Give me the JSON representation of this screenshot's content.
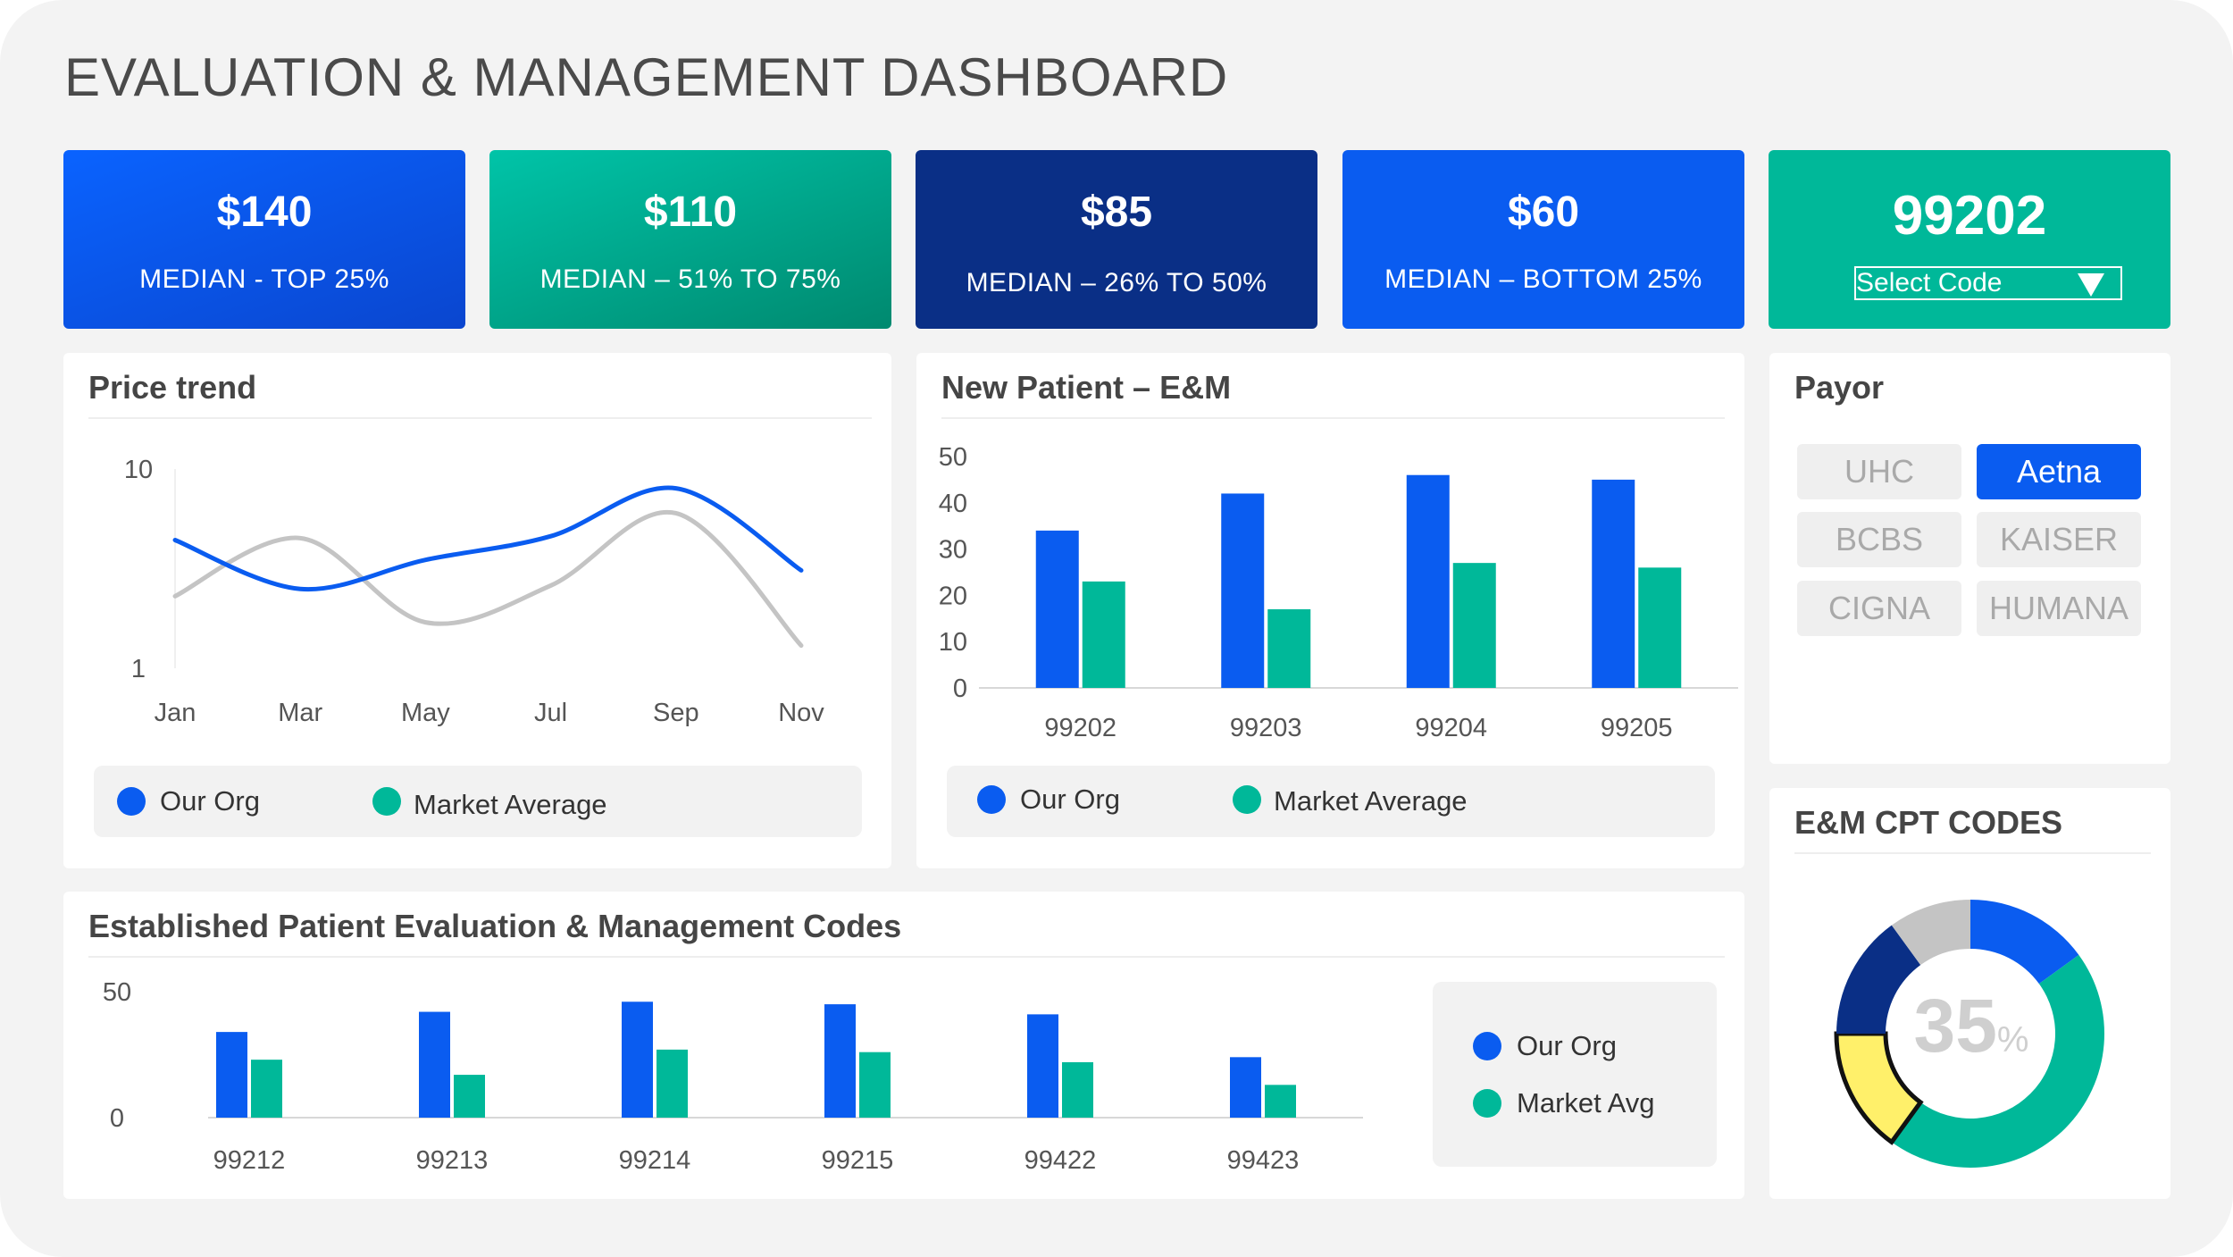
{
  "title": "EVALUATION & MANAGEMENT DASHBOARD",
  "colors": {
    "blue": "#0a5cf0",
    "teal": "#00b899",
    "navy": "#0a2f86",
    "gray": "#c4c4c4",
    "yellow": "#fff06a"
  },
  "kpis": [
    {
      "value": "$140",
      "label": "MEDIAN - TOP 25%"
    },
    {
      "value": "$110",
      "label": "MEDIAN – 51% TO 75%"
    },
    {
      "value": "$85",
      "label": "MEDIAN – 26% TO 50%"
    },
    {
      "value": "$60",
      "label": "MEDIAN – BOTTOM 25%"
    }
  ],
  "code_selector": {
    "value": "99202",
    "label": "Select Code",
    "icon": "dropdown-triangle-icon"
  },
  "price_trend": {
    "title": "Price trend",
    "legend": [
      "Our Org",
      "Market Average"
    ]
  },
  "new_patient": {
    "title": "New Patient – E&M",
    "legend": [
      "Our Org",
      "Market Average"
    ]
  },
  "payor": {
    "title": "Payor",
    "options": [
      "UHC",
      "Aetna",
      "BCBS",
      "KAISER",
      "CIGNA",
      "HUMANA"
    ],
    "selected": "Aetna"
  },
  "established": {
    "title": "Established Patient Evaluation & Management Codes",
    "legend": [
      "Our Org",
      "Market Avg"
    ]
  },
  "cpt_codes": {
    "title": "E&M CPT CODES",
    "percent_value": "35",
    "percent_sign": "%"
  },
  "chart_data": [
    {
      "type": "line",
      "x": [
        "Jan",
        "Mar",
        "May",
        "Jul",
        "Sep",
        "Nov"
      ],
      "yticks": [
        "1",
        "10"
      ],
      "series": [
        {
          "name": "Our Org",
          "values": [
            4.4,
            2.5,
            3.5,
            4.6,
            8.0,
            3.1
          ]
        },
        {
          "name": "Market Average",
          "values": [
            2.3,
            4.5,
            1.7,
            2.6,
            6.0,
            1.3
          ]
        }
      ]
    },
    {
      "type": "bar",
      "categories": [
        "99202",
        "99203",
        "99204",
        "99205"
      ],
      "ylim": [
        0,
        50
      ],
      "yticks": [
        0,
        10,
        20,
        30,
        40,
        50
      ],
      "series": [
        {
          "name": "Our Org",
          "values": [
            34,
            42,
            46,
            45
          ]
        },
        {
          "name": "Market Average",
          "values": [
            23,
            17,
            27,
            26
          ]
        }
      ]
    },
    {
      "type": "bar",
      "categories": [
        "99212",
        "99213",
        "99214",
        "99215",
        "99422",
        "99423"
      ],
      "ylim": [
        0,
        50
      ],
      "yticks": [
        0,
        50
      ],
      "series": [
        {
          "name": "Our Org",
          "values": [
            34,
            42,
            46,
            45,
            41,
            24
          ]
        },
        {
          "name": "Market Avg",
          "values": [
            23,
            17,
            27,
            26,
            22,
            13
          ]
        }
      ]
    },
    {
      "type": "pie",
      "style": "donut",
      "center_label": "35%",
      "slices": [
        {
          "value": 15,
          "color": "#0a5cf0"
        },
        {
          "value": 45,
          "color": "#00b899"
        },
        {
          "value": 15,
          "color": "#fff06a"
        },
        {
          "value": 15,
          "color": "#0a2f86"
        },
        {
          "value": 10,
          "color": "#c4c4c4"
        }
      ]
    }
  ]
}
